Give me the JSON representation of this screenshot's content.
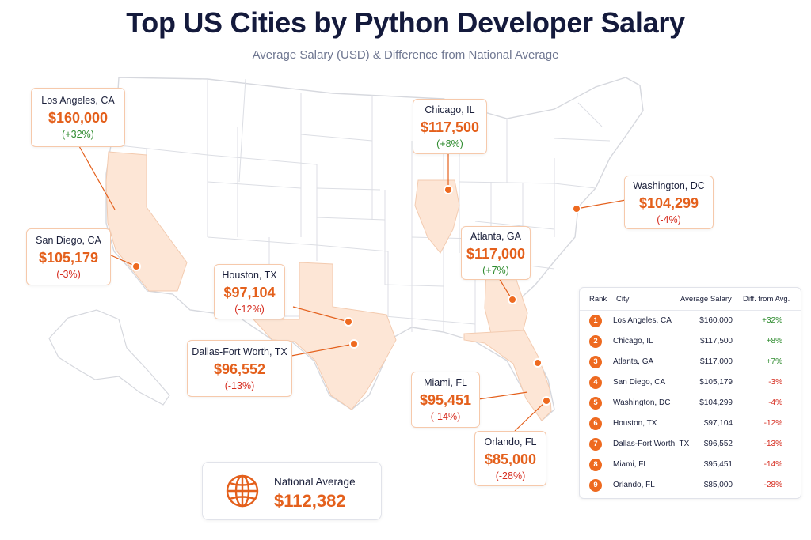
{
  "title": "Top US Cities by Python Developer Salary",
  "subtitle": "Average Salary (USD) & Difference from National Average",
  "colors": {
    "accent": "#e4601c",
    "highlight_fill": "#fde6d6",
    "positive": "#2e8b2e",
    "negative": "#d62d20",
    "marker": "#ee6a20"
  },
  "icons": {
    "national": "globe-icon",
    "marker": "location-dot"
  },
  "highlighted_states": [
    "California",
    "Texas",
    "Illinois",
    "Georgia",
    "Florida"
  ],
  "callouts": [
    {
      "id": "los-angeles",
      "city": "Los Angeles, CA",
      "salary": "$160,000",
      "diff": "(+32%)",
      "sign": "pos"
    },
    {
      "id": "chicago",
      "city": "Chicago, IL",
      "salary": "$117,500",
      "diff": "(+8%)",
      "sign": "pos"
    },
    {
      "id": "washington",
      "city": "Washington, DC",
      "salary": "$104,299",
      "diff": "(-4%)",
      "sign": "neg"
    },
    {
      "id": "san-diego",
      "city": "San Diego, CA",
      "salary": "$105,179",
      "diff": "(-3%)",
      "sign": "neg"
    },
    {
      "id": "atlanta",
      "city": "Atlanta, GA",
      "salary": "$117,000",
      "diff": "(+7%)",
      "sign": "pos"
    },
    {
      "id": "houston",
      "city": "Houston, TX",
      "salary": "$97,104",
      "diff": "(-12%)",
      "sign": "neg"
    },
    {
      "id": "dallas",
      "city": "Dallas-Fort Worth, TX",
      "salary": "$96,552",
      "diff": "(-13%)",
      "sign": "neg"
    },
    {
      "id": "miami",
      "city": "Miami, FL",
      "salary": "$95,451",
      "diff": "(-14%)",
      "sign": "neg"
    },
    {
      "id": "orlando",
      "city": "Orlando, FL",
      "salary": "$85,000",
      "diff": "(-28%)",
      "sign": "neg"
    }
  ],
  "national": {
    "label": "National Average",
    "value": "$112,382"
  },
  "table": {
    "headers": [
      "Rank",
      "City",
      "Average Salary",
      "Diff. from Avg."
    ],
    "rows": [
      {
        "rank": "1",
        "city": "Los Angeles, CA",
        "salary": "$160,000",
        "diff": "+32%"
      },
      {
        "rank": "2",
        "city": "Chicago, IL",
        "salary": "$117,500",
        "diff": "+8%"
      },
      {
        "rank": "3",
        "city": "Atlanta, GA",
        "salary": "$117,000",
        "diff": "+7%"
      },
      {
        "rank": "4",
        "city": "San Diego, CA",
        "salary": "$105,179",
        "diff": "-3%"
      },
      {
        "rank": "5",
        "city": "Washington, DC",
        "salary": "$104,299",
        "diff": "-4%"
      },
      {
        "rank": "6",
        "city": "Houston, TX",
        "salary": "$97,104",
        "diff": "-12%"
      },
      {
        "rank": "7",
        "city": "Dallas-Fort Worth, TX",
        "salary": "$96,552",
        "diff": "-13%"
      },
      {
        "rank": "8",
        "city": "Miami, FL",
        "salary": "$95,451",
        "diff": "-14%"
      },
      {
        "rank": "9",
        "city": "Orlando, FL",
        "salary": "$85,000",
        "diff": "-28%"
      }
    ]
  }
}
